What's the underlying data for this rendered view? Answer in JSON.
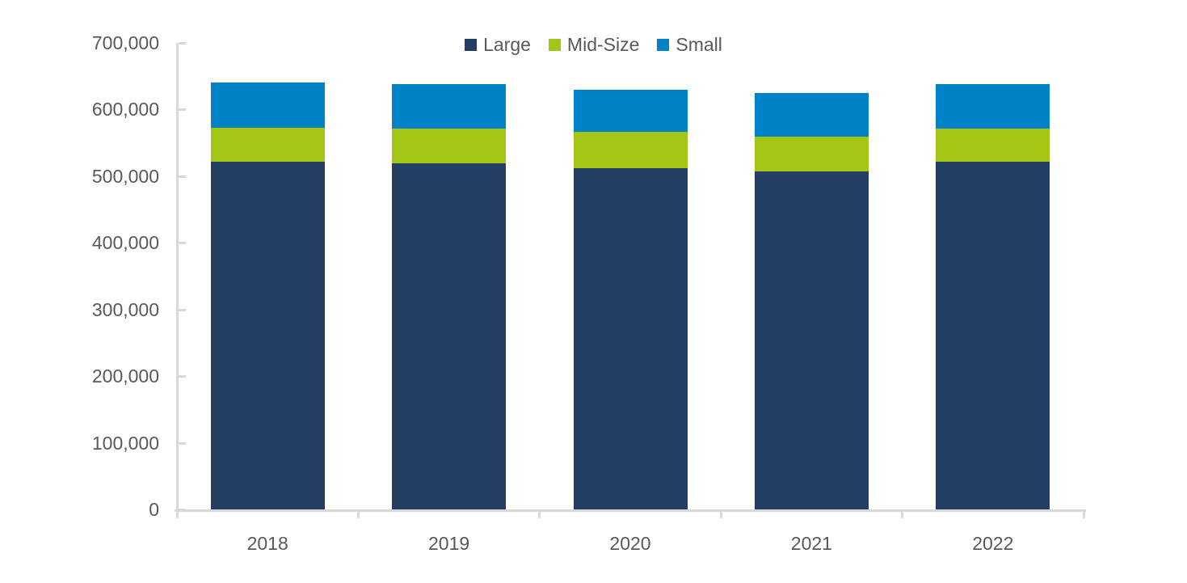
{
  "chart_data": {
    "type": "bar",
    "stacked": true,
    "title": "",
    "categories": [
      "2018",
      "2019",
      "2020",
      "2021",
      "2022"
    ],
    "series": [
      {
        "name": "Large",
        "color": "#243D62",
        "values": [
          522000,
          519000,
          512000,
          507000,
          522000
        ]
      },
      {
        "name": "Mid-Size",
        "color": "#A2C516",
        "values": [
          51000,
          53000,
          55000,
          52000,
          49000
        ]
      },
      {
        "name": "Small",
        "color": "#0082C8",
        "values": [
          68000,
          66000,
          63000,
          66000,
          67000
        ]
      }
    ],
    "totals": [
      641000,
      638000,
      630000,
      625000,
      638000
    ],
    "y_axis": {
      "min": 0,
      "max": 700000,
      "tick_interval": 100000,
      "tick_labels": [
        "0",
        "100,000",
        "200,000",
        "300,000",
        "400,000",
        "500,000",
        "600,000",
        "700,000"
      ]
    },
    "xlabel": "",
    "ylabel": "",
    "legend_position": "top-center",
    "grid": false
  },
  "colors": {
    "background": "#FFFFFF",
    "axis": "#D9D9D9",
    "label_text": "#595959"
  }
}
